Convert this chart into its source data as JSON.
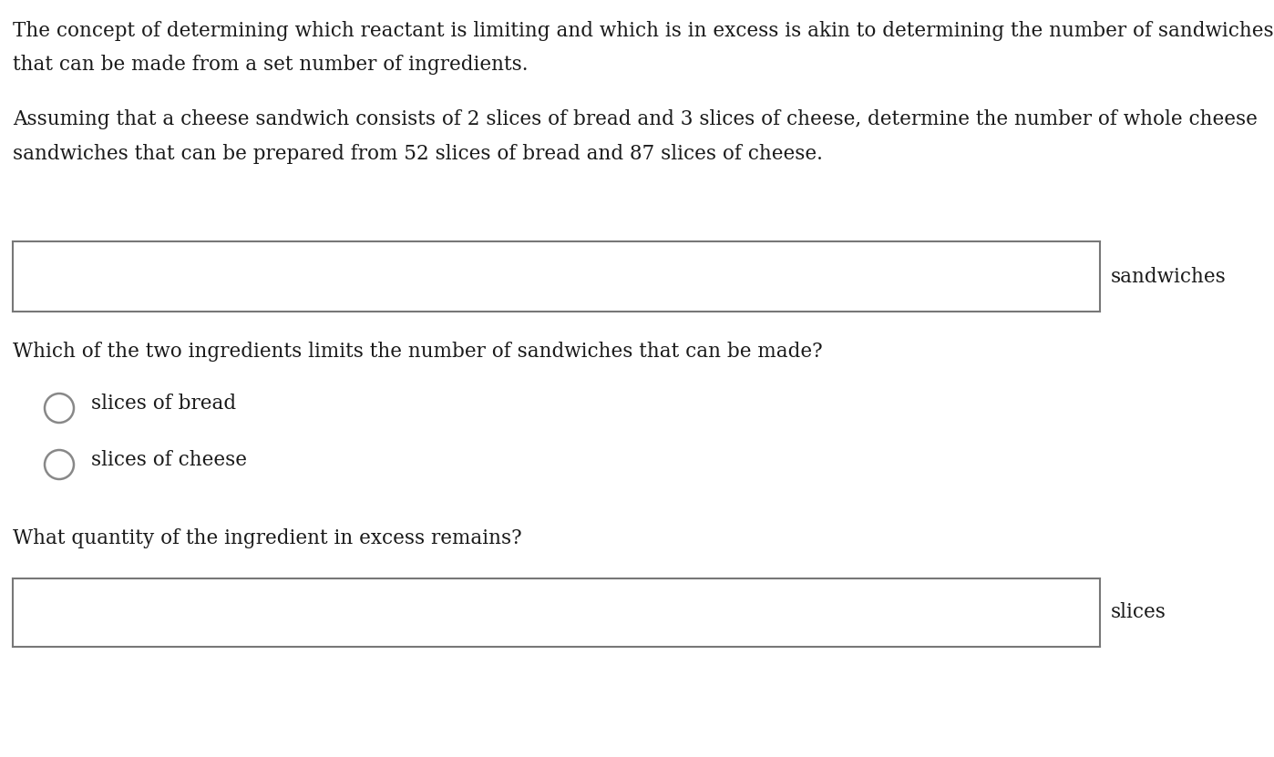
{
  "bg_color": "#ffffff",
  "text_color": "#1a1a1a",
  "font_size_body": 15.5,
  "paragraph1_line1": "The concept of determining which reactant is limiting and which is in excess is akin to determining the number of sandwiches",
  "paragraph1_line2": "that can be made from a set number of ingredients.",
  "paragraph2_line1": "Assuming that a cheese sandwich consists of 2 slices of bread and 3 slices of cheese, determine the number of whole cheese",
  "paragraph2_line2": "sandwiches that can be prepared from 52 slices of bread and 87 slices of cheese.",
  "box1_label": "sandwiches",
  "question1": "Which of the two ingredients limits the number of sandwiches that can be made?",
  "radio1": "slices of bread",
  "radio2": "slices of cheese",
  "question2": "What quantity of the ingredient in excess remains?",
  "box2_label": "slices",
  "box_color": "#ffffff",
  "box_edge_color": "#777777",
  "radio_color": "#888888",
  "radio_linewidth": 1.8
}
